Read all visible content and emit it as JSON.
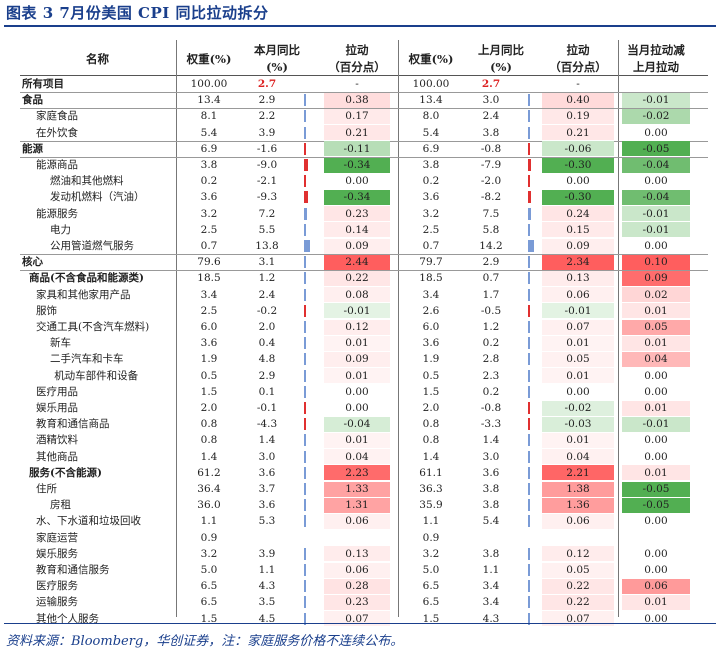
{
  "title": "图表 3   7月份美国 CPI 同比拉动拆分",
  "source": "资料来源：Bloomberg，华创证券，注：家庭服务价格不连续公布。",
  "headers": {
    "name": "名称",
    "w1": "权重(%)",
    "yoy1": "本月同比\n(%)",
    "c1": "拉动\n（百分点）",
    "w2": "权重(%)",
    "yoy2": "上月同比\n(%)",
    "c2": "拉动\n（百分点）",
    "d": "当月拉动减\n上月拉动"
  },
  "colors": {
    "pos": "#f06565",
    "neg": "#4aa84a",
    "bar_blue": "#7a9bd6",
    "bar_red": "#e03030",
    "accent": "#1a3f8c"
  },
  "rows": [
    {
      "name": "所有项目",
      "indent": 0,
      "bold": true,
      "w1": "100.00",
      "yoy1": "2.7",
      "c1": "-",
      "w2": "100.00",
      "yoy2": "2.7",
      "c2": "-",
      "d": "",
      "red_yoy": true
    },
    {
      "name": "食品",
      "indent": 0,
      "bold": true,
      "w1": "13.4",
      "yoy1": "2.9",
      "c1": "0.38",
      "w2": "13.4",
      "yoy2": "3.0",
      "c2": "0.40",
      "d": "-0.01"
    },
    {
      "name": "家庭食品",
      "indent": 1,
      "w1": "8.1",
      "yoy1": "2.2",
      "c1": "0.17",
      "w2": "8.0",
      "yoy2": "2.4",
      "c2": "0.19",
      "d": "-0.02"
    },
    {
      "name": "在外饮食",
      "indent": 1,
      "w1": "5.4",
      "yoy1": "3.9",
      "c1": "0.21",
      "w2": "5.4",
      "yoy2": "3.8",
      "c2": "0.21",
      "d": "0.00"
    },
    {
      "name": "能源",
      "indent": 0,
      "bold": true,
      "w1": "6.9",
      "yoy1": "-1.6",
      "c1": "-0.11",
      "w2": "6.9",
      "yoy2": "-0.8",
      "c2": "-0.06",
      "d": "-0.05"
    },
    {
      "name": "能源商品",
      "indent": 1,
      "w1": "3.8",
      "yoy1": "-9.0",
      "c1": "-0.34",
      "w2": "3.8",
      "yoy2": "-7.9",
      "c2": "-0.30",
      "d": "-0.04"
    },
    {
      "name": "燃油和其他燃料",
      "indent": 2,
      "w1": "0.2",
      "yoy1": "-2.1",
      "c1": "0.00",
      "w2": "0.2",
      "yoy2": "-2.0",
      "c2": "0.00",
      "d": "0.00"
    },
    {
      "name": "发动机燃料（汽油）",
      "indent": 2,
      "w1": "3.6",
      "yoy1": "-9.3",
      "c1": "-0.34",
      "w2": "3.6",
      "yoy2": "-8.2",
      "c2": "-0.30",
      "d": "-0.04"
    },
    {
      "name": "能源服务",
      "indent": 1,
      "w1": "3.2",
      "yoy1": "7.2",
      "c1": "0.23",
      "w2": "3.2",
      "yoy2": "7.5",
      "c2": "0.24",
      "d": "-0.01"
    },
    {
      "name": "电力",
      "indent": 2,
      "w1": "2.5",
      "yoy1": "5.5",
      "c1": "0.14",
      "w2": "2.5",
      "yoy2": "5.8",
      "c2": "0.15",
      "d": "-0.01"
    },
    {
      "name": "公用管道燃气服务",
      "indent": 2,
      "w1": "0.7",
      "yoy1": "13.8",
      "c1": "0.09",
      "w2": "0.7",
      "yoy2": "14.2",
      "c2": "0.09",
      "d": "0.00"
    },
    {
      "name": "核心",
      "indent": 0,
      "bold": true,
      "w1": "79.6",
      "yoy1": "3.1",
      "c1": "2.44",
      "w2": "79.7",
      "yoy2": "2.9",
      "c2": "2.34",
      "d": "0.10"
    },
    {
      "name": "商品(不含食品和能源类)",
      "indent": 0.5,
      "bold": true,
      "w1": "18.5",
      "yoy1": "1.2",
      "c1": "0.22",
      "w2": "18.5",
      "yoy2": "0.7",
      "c2": "0.13",
      "d": "0.09"
    },
    {
      "name": "家具和其他家用产品",
      "indent": 1,
      "w1": "3.4",
      "yoy1": "2.4",
      "c1": "0.08",
      "w2": "3.4",
      "yoy2": "1.7",
      "c2": "0.06",
      "d": "0.02"
    },
    {
      "name": "服饰",
      "indent": 1,
      "w1": "2.5",
      "yoy1": "-0.2",
      "c1": "-0.01",
      "w2": "2.6",
      "yoy2": "-0.5",
      "c2": "-0.01",
      "d": "0.01"
    },
    {
      "name": "交通工具(不含汽车燃料)",
      "indent": 1,
      "w1": "6.0",
      "yoy1": "2.0",
      "c1": "0.12",
      "w2": "6.0",
      "yoy2": "1.2",
      "c2": "0.07",
      "d": "0.05"
    },
    {
      "name": "新车",
      "indent": 2,
      "w1": "3.6",
      "yoy1": "0.4",
      "c1": "0.01",
      "w2": "3.6",
      "yoy2": "0.2",
      "c2": "0.01",
      "d": "0.01"
    },
    {
      "name": "二手汽车和卡车",
      "indent": 2,
      "w1": "1.9",
      "yoy1": "4.8",
      "c1": "0.09",
      "w2": "1.9",
      "yoy2": "2.8",
      "c2": "0.05",
      "d": "0.04"
    },
    {
      "name": "机动车部件和设备",
      "indent": 2.3,
      "w1": "0.5",
      "yoy1": "2.9",
      "c1": "0.01",
      "w2": "0.5",
      "yoy2": "2.3",
      "c2": "0.01",
      "d": "0.00"
    },
    {
      "name": "医疗用品",
      "indent": 1,
      "w1": "1.5",
      "yoy1": "0.1",
      "c1": "0.00",
      "w2": "1.5",
      "yoy2": "0.2",
      "c2": "0.00",
      "d": "0.00"
    },
    {
      "name": "娱乐用品",
      "indent": 1,
      "w1": "2.0",
      "yoy1": "-0.1",
      "c1": "0.00",
      "w2": "2.0",
      "yoy2": "-0.8",
      "c2": "-0.02",
      "d": "0.01"
    },
    {
      "name": "教育和通信商品",
      "indent": 1,
      "w1": "0.8",
      "yoy1": "-4.3",
      "c1": "-0.04",
      "w2": "0.8",
      "yoy2": "-3.3",
      "c2": "-0.03",
      "d": "-0.01"
    },
    {
      "name": "酒精饮料",
      "indent": 1,
      "w1": "0.8",
      "yoy1": "1.4",
      "c1": "0.01",
      "w2": "0.8",
      "yoy2": "1.4",
      "c2": "0.01",
      "d": "0.00"
    },
    {
      "name": "其他商品",
      "indent": 1,
      "w1": "1.4",
      "yoy1": "3.0",
      "c1": "0.04",
      "w2": "1.4",
      "yoy2": "3.0",
      "c2": "0.04",
      "d": "0.00"
    },
    {
      "name": "服务(不含能源)",
      "indent": 0.5,
      "bold": true,
      "w1": "61.2",
      "yoy1": "3.6",
      "c1": "2.23",
      "w2": "61.1",
      "yoy2": "3.6",
      "c2": "2.21",
      "d": "0.01"
    },
    {
      "name": "住所",
      "indent": 1,
      "w1": "36.4",
      "yoy1": "3.7",
      "c1": "1.33",
      "w2": "36.3",
      "yoy2": "3.8",
      "c2": "1.38",
      "d": "-0.05"
    },
    {
      "name": "房租",
      "indent": 2,
      "w1": "36.0",
      "yoy1": "3.6",
      "c1": "1.31",
      "w2": "35.9",
      "yoy2": "3.8",
      "c2": "1.36",
      "d": "-0.05"
    },
    {
      "name": "水、下水道和垃圾回收",
      "indent": 1,
      "w1": "1.1",
      "yoy1": "5.3",
      "c1": "0.06",
      "w2": "1.1",
      "yoy2": "5.4",
      "c2": "0.06",
      "d": "0.00"
    },
    {
      "name": "家庭运营",
      "indent": 1,
      "w1": "0.9",
      "yoy1": "",
      "c1": "",
      "w2": "0.9",
      "yoy2": "",
      "c2": "",
      "d": ""
    },
    {
      "name": "娱乐服务",
      "indent": 1,
      "w1": "3.2",
      "yoy1": "3.9",
      "c1": "0.13",
      "w2": "3.2",
      "yoy2": "3.8",
      "c2": "0.12",
      "d": "0.00"
    },
    {
      "name": "教育和通信服务",
      "indent": 1,
      "w1": "5.0",
      "yoy1": "1.1",
      "c1": "0.06",
      "w2": "5.0",
      "yoy2": "1.1",
      "c2": "0.05",
      "d": "0.00"
    },
    {
      "name": "医疗服务",
      "indent": 1,
      "w1": "6.5",
      "yoy1": "4.3",
      "c1": "0.28",
      "w2": "6.5",
      "yoy2": "3.4",
      "c2": "0.22",
      "d": "0.06"
    },
    {
      "name": "运输服务",
      "indent": 1,
      "w1": "6.5",
      "yoy1": "3.5",
      "c1": "0.23",
      "w2": "6.5",
      "yoy2": "3.4",
      "c2": "0.22",
      "d": "0.01"
    },
    {
      "name": "其他个人服务",
      "indent": 1,
      "w1": "1.5",
      "yoy1": "4.5",
      "c1": "0.07",
      "w2": "1.5",
      "yoy2": "4.3",
      "c2": "0.07",
      "d": "0.00"
    }
  ]
}
